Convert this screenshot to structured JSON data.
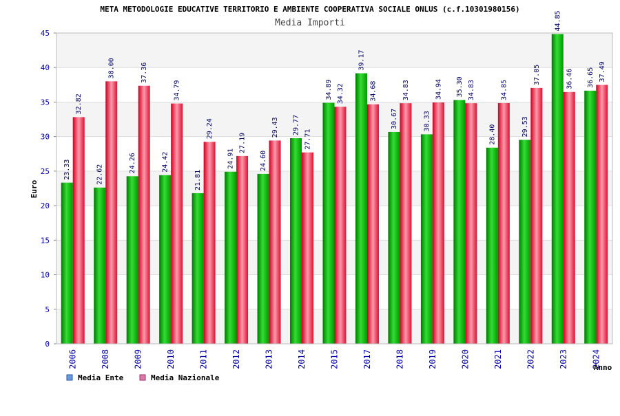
{
  "chart_data": {
    "type": "bar",
    "title": "META METODOLOGIE EDUCATIVE TERRITORIO E AMBIENTE COOPERATIVA SOCIALE ONLUS (c.f.10301980156)",
    "subtitle": "Media Importi",
    "xlabel": "Anno",
    "ylabel": "Euro",
    "ylim": [
      0,
      45
    ],
    "yticks": [
      0,
      5,
      10,
      15,
      20,
      25,
      30,
      35,
      40,
      45
    ],
    "categories": [
      "2006",
      "2008",
      "2009",
      "2010",
      "2011",
      "2012",
      "2013",
      "2014",
      "2015",
      "2017",
      "2018",
      "2019",
      "2020",
      "2021",
      "2022",
      "2023",
      "2024"
    ],
    "series": [
      {
        "name": "Media Ente",
        "values": [
          23.33,
          22.62,
          24.26,
          24.42,
          21.81,
          24.91,
          24.6,
          29.77,
          34.89,
          39.17,
          30.67,
          30.33,
          35.3,
          28.4,
          29.53,
          44.85,
          36.65
        ],
        "labels": [
          "23.33",
          "22.62",
          "24.26",
          "24.42",
          "21.81",
          "24.91",
          "24.60",
          "29.77",
          "34.89",
          "39.17",
          "30.67",
          "30.33",
          "35.30",
          "28.40",
          "29.53",
          "44.85",
          "36.65"
        ],
        "color": "#00aa00"
      },
      {
        "name": "Media Nazionale",
        "values": [
          32.82,
          38.0,
          37.36,
          34.79,
          29.24,
          27.19,
          29.43,
          27.71,
          34.32,
          34.68,
          34.83,
          34.94,
          34.83,
          34.85,
          37.05,
          36.46,
          37.49
        ],
        "labels": [
          "32.82",
          "38.00",
          "37.36",
          "34.79",
          "29.24",
          "27.19",
          "29.43",
          "27.71",
          "34.32",
          "34.68",
          "34.83",
          "34.94",
          "34.83",
          "34.85",
          "37.05",
          "36.46",
          "37.49"
        ],
        "color": "#dd1133"
      }
    ],
    "legend": {
      "placement": "bottom-left",
      "items": [
        {
          "label": "Media Ente",
          "color": "#6699dd"
        },
        {
          "label": "Media Nazionale",
          "color": "#dd77aa"
        }
      ]
    },
    "grid": true
  }
}
